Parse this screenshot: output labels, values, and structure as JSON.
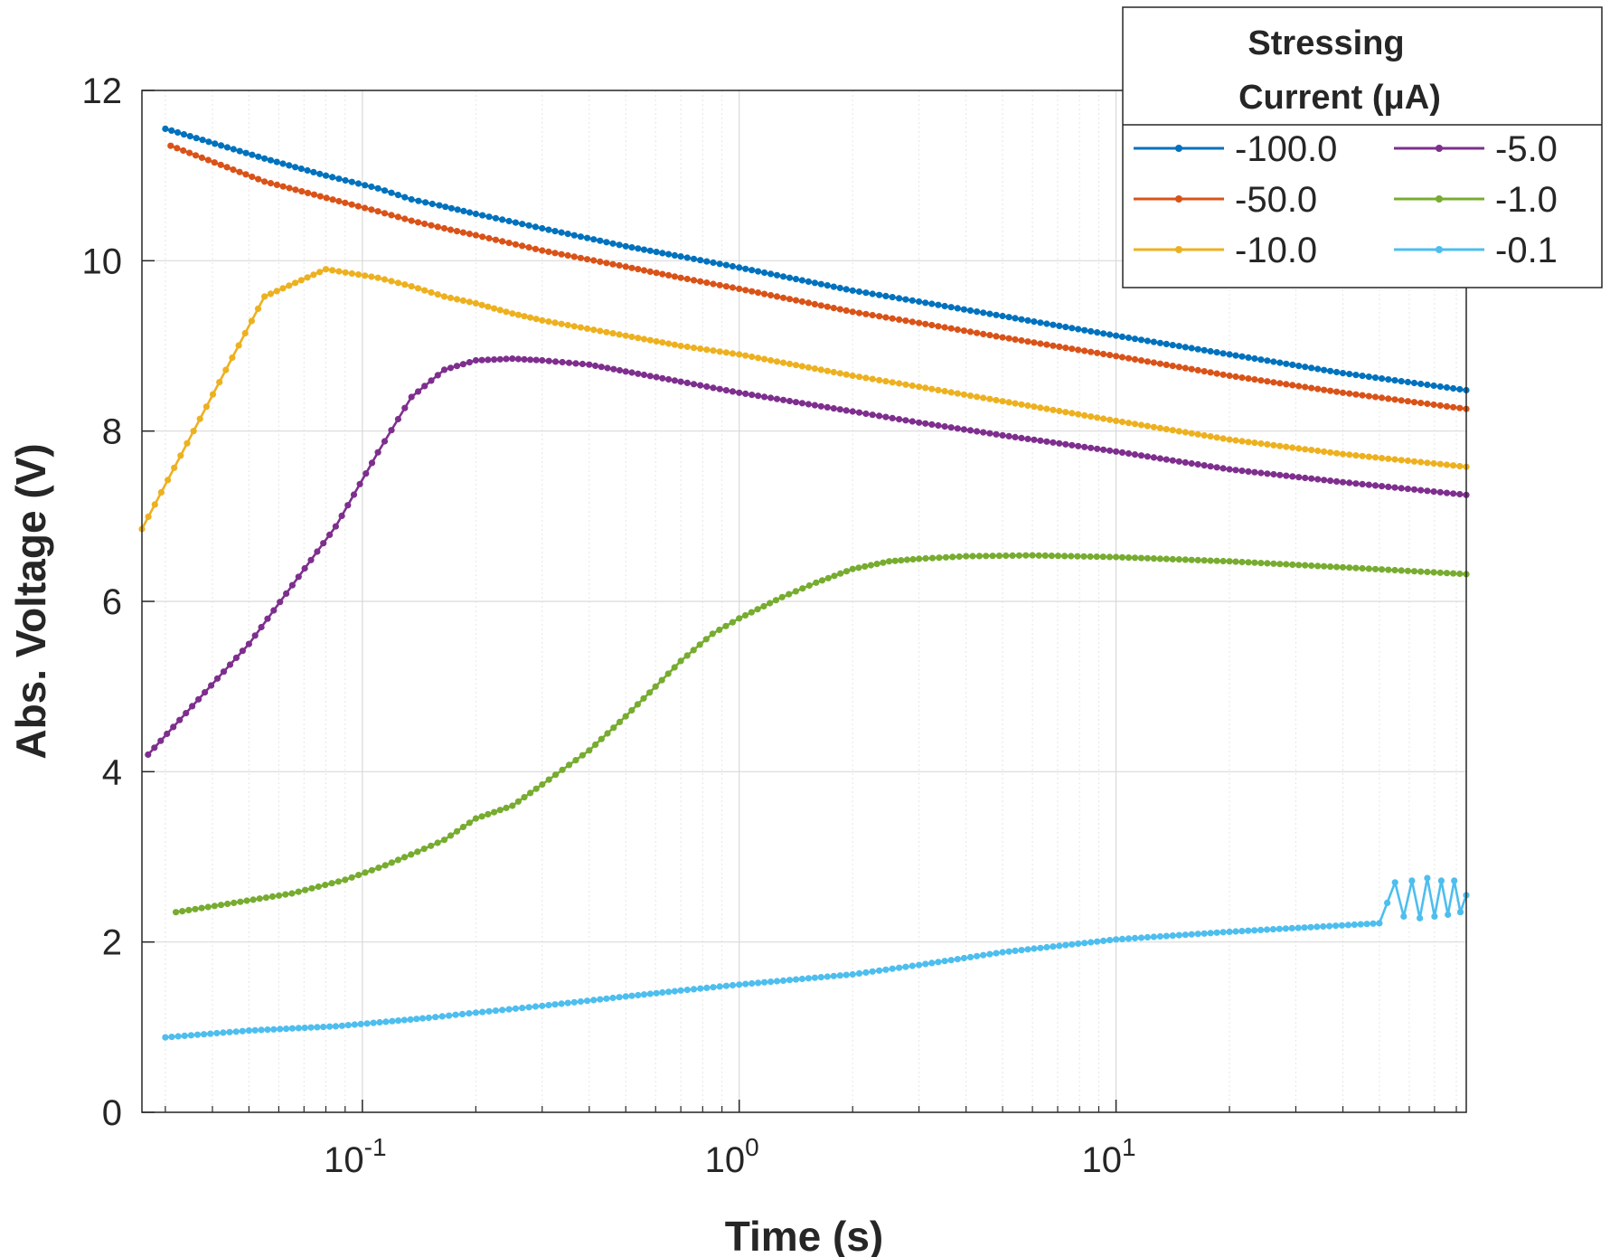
{
  "chart_data": {
    "type": "line",
    "title": "",
    "xlabel": "Time (s)",
    "ylabel": "Abs. Voltage (V)",
    "x_scale": "log",
    "xlim": [
      0.026,
      85
    ],
    "ylim": [
      0,
      12
    ],
    "grid": true,
    "minor_grid": true,
    "x_ticks": [
      {
        "value": 0.1,
        "base": "10",
        "exp": "-1"
      },
      {
        "value": 1,
        "base": "10",
        "exp": "0"
      },
      {
        "value": 10,
        "base": "10",
        "exp": "1"
      }
    ],
    "y_ticks": [
      {
        "value": 0,
        "label": "0"
      },
      {
        "value": 2,
        "label": "2"
      },
      {
        "value": 4,
        "label": "4"
      },
      {
        "value": 6,
        "label": "6"
      },
      {
        "value": 8,
        "label": "8"
      },
      {
        "value": 10,
        "label": "10"
      },
      {
        "value": 12,
        "label": "12"
      }
    ],
    "legend": {
      "title_line1": "Stressing",
      "title_line2": "Current (μA)",
      "placement": "top-right",
      "columns": 2
    },
    "series": [
      {
        "name": "-100.0",
        "color": "#0072BD",
        "points": [
          [
            0.03,
            11.55
          ],
          [
            0.055,
            11.2
          ],
          [
            0.08,
            11.0
          ],
          [
            0.11,
            10.85
          ],
          [
            0.135,
            10.72
          ],
          [
            0.16,
            10.65
          ],
          [
            0.2,
            10.55
          ],
          [
            0.3,
            10.38
          ],
          [
            0.5,
            10.17
          ],
          [
            0.7,
            10.05
          ],
          [
            1.0,
            9.92
          ],
          [
            2.0,
            9.65
          ],
          [
            3.0,
            9.52
          ],
          [
            5.0,
            9.35
          ],
          [
            10.0,
            9.12
          ],
          [
            20.0,
            8.9
          ],
          [
            40.0,
            8.68
          ],
          [
            85.0,
            8.48
          ]
        ]
      },
      {
        "name": "-50.0",
        "color": "#D95319",
        "points": [
          [
            0.031,
            11.35
          ],
          [
            0.055,
            10.93
          ],
          [
            0.09,
            10.68
          ],
          [
            0.11,
            10.58
          ],
          [
            0.135,
            10.47
          ],
          [
            0.165,
            10.38
          ],
          [
            0.2,
            10.3
          ],
          [
            0.3,
            10.12
          ],
          [
            0.5,
            9.93
          ],
          [
            0.7,
            9.8
          ],
          [
            1.0,
            9.67
          ],
          [
            2.0,
            9.4
          ],
          [
            3.0,
            9.27
          ],
          [
            5.0,
            9.1
          ],
          [
            10.0,
            8.88
          ],
          [
            20.0,
            8.65
          ],
          [
            40.0,
            8.45
          ],
          [
            85.0,
            8.26
          ]
        ]
      },
      {
        "name": "-10.0",
        "color": "#EDB120",
        "points": [
          [
            0.026,
            6.85
          ],
          [
            0.055,
            9.58
          ],
          [
            0.08,
            9.9
          ],
          [
            0.11,
            9.8
          ],
          [
            0.135,
            9.7
          ],
          [
            0.165,
            9.58
          ],
          [
            0.2,
            9.5
          ],
          [
            0.25,
            9.38
          ],
          [
            0.3,
            9.3
          ],
          [
            0.5,
            9.12
          ],
          [
            0.7,
            9.0
          ],
          [
            1.0,
            8.9
          ],
          [
            2.0,
            8.65
          ],
          [
            3.0,
            8.52
          ],
          [
            5.0,
            8.35
          ],
          [
            10.0,
            8.12
          ],
          [
            20.0,
            7.9
          ],
          [
            40.0,
            7.73
          ],
          [
            85.0,
            7.58
          ]
        ]
      },
      {
        "name": "-5.0",
        "color": "#7E2F8E",
        "points": [
          [
            0.027,
            4.2
          ],
          [
            0.05,
            5.5
          ],
          [
            0.085,
            6.88
          ],
          [
            0.11,
            7.75
          ],
          [
            0.135,
            8.4
          ],
          [
            0.165,
            8.72
          ],
          [
            0.2,
            8.83
          ],
          [
            0.25,
            8.85
          ],
          [
            0.3,
            8.83
          ],
          [
            0.4,
            8.78
          ],
          [
            0.5,
            8.7
          ],
          [
            0.7,
            8.58
          ],
          [
            1.0,
            8.45
          ],
          [
            2.0,
            8.23
          ],
          [
            3.0,
            8.1
          ],
          [
            5.0,
            7.95
          ],
          [
            10.0,
            7.76
          ],
          [
            20.0,
            7.55
          ],
          [
            40.0,
            7.4
          ],
          [
            85.0,
            7.25
          ]
        ]
      },
      {
        "name": "-1.0",
        "color": "#77AC30",
        "points": [
          [
            0.032,
            2.35
          ],
          [
            0.065,
            2.57
          ],
          [
            0.09,
            2.73
          ],
          [
            0.115,
            2.9
          ],
          [
            0.14,
            3.06
          ],
          [
            0.165,
            3.2
          ],
          [
            0.2,
            3.45
          ],
          [
            0.25,
            3.6
          ],
          [
            0.3,
            3.85
          ],
          [
            0.4,
            4.25
          ],
          [
            0.5,
            4.65
          ],
          [
            0.6,
            5.0
          ],
          [
            0.7,
            5.3
          ],
          [
            0.85,
            5.62
          ],
          [
            1.0,
            5.8
          ],
          [
            1.3,
            6.05
          ],
          [
            1.6,
            6.22
          ],
          [
            2.0,
            6.38
          ],
          [
            2.5,
            6.47
          ],
          [
            3.0,
            6.5
          ],
          [
            4.0,
            6.53
          ],
          [
            6.0,
            6.54
          ],
          [
            10.0,
            6.52
          ],
          [
            20.0,
            6.47
          ],
          [
            40.0,
            6.4
          ],
          [
            85.0,
            6.32
          ]
        ]
      },
      {
        "name": "-0.1",
        "color": "#4DBEEE",
        "points": [
          [
            0.03,
            0.88
          ],
          [
            0.05,
            0.96
          ],
          [
            0.085,
            1.01
          ],
          [
            0.12,
            1.07
          ],
          [
            0.15,
            1.11
          ],
          [
            0.2,
            1.17
          ],
          [
            0.3,
            1.25
          ],
          [
            0.5,
            1.36
          ],
          [
            0.7,
            1.43
          ],
          [
            1.0,
            1.5
          ],
          [
            2.0,
            1.62
          ],
          [
            3.0,
            1.73
          ],
          [
            5.0,
            1.88
          ],
          [
            10.0,
            2.03
          ],
          [
            20.0,
            2.12
          ],
          [
            50.0,
            2.22
          ],
          [
            55.0,
            2.7
          ],
          [
            58.0,
            2.3
          ],
          [
            61.0,
            2.72
          ],
          [
            64.0,
            2.28
          ],
          [
            67.0,
            2.75
          ],
          [
            70.0,
            2.3
          ],
          [
            73.0,
            2.72
          ],
          [
            76.0,
            2.32
          ],
          [
            79.0,
            2.72
          ],
          [
            82.0,
            2.35
          ],
          [
            85.0,
            2.55
          ]
        ]
      }
    ]
  }
}
